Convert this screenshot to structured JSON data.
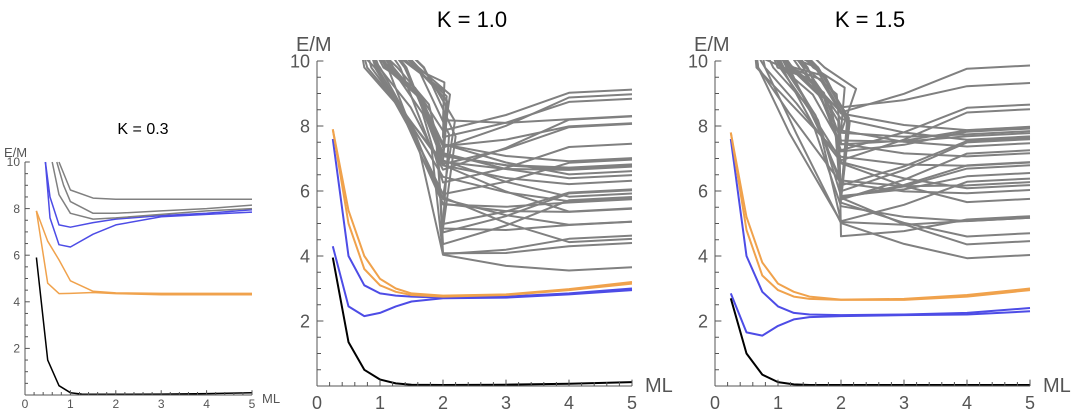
{
  "colors": {
    "gray": "#808080",
    "orange": "#f0a24c",
    "blue": "#4d4ce6",
    "black": "#000000",
    "axis": "#555555"
  },
  "chart_data": [
    {
      "type": "line",
      "title": "K = 0.3",
      "xlabel": "ML",
      "ylabel": "E/M",
      "xlim": [
        0,
        5
      ],
      "ylim": [
        0,
        10
      ],
      "xticks": [
        "0",
        "1",
        "2",
        "3",
        "4",
        "5"
      ],
      "yticks": [
        "2",
        "4",
        "6",
        "8",
        "10"
      ],
      "grid": false,
      "series": [
        {
          "color": "black",
          "x": [
            0.25,
            0.5,
            0.75,
            1,
            1.25,
            1.5,
            2,
            3,
            4,
            5
          ],
          "y": [
            5.9,
            1.5,
            0.4,
            0.1,
            0.04,
            0.03,
            0.03,
            0.04,
            0.06,
            0.1
          ]
        },
        {
          "color": "orange",
          "x": [
            0.25,
            0.5,
            0.75,
            1,
            1.5,
            2,
            3,
            4,
            5
          ],
          "y": [
            7.9,
            4.8,
            4.35,
            4.36,
            4.4,
            4.35,
            4.3,
            4.3,
            4.3
          ]
        },
        {
          "color": "orange",
          "x": [
            0.25,
            0.5,
            0.75,
            1,
            1.5,
            2,
            3,
            4,
            5
          ],
          "y": [
            7.9,
            6.6,
            5.8,
            4.9,
            4.45,
            4.38,
            4.36,
            4.36,
            4.36
          ]
        },
        {
          "color": "blue",
          "x": [
            0.45,
            0.55,
            0.75,
            1,
            1.5,
            2,
            3,
            4,
            5
          ],
          "y": [
            10,
            7.6,
            6.45,
            6.35,
            6.9,
            7.3,
            7.65,
            7.75,
            7.85
          ]
        },
        {
          "color": "blue",
          "x": [
            0.45,
            0.55,
            0.75,
            1,
            1.5,
            2,
            3,
            4,
            5
          ],
          "y": [
            10,
            8.5,
            7.3,
            7.2,
            7.4,
            7.55,
            7.7,
            7.8,
            7.95
          ]
        },
        {
          "color": "gray",
          "x": [
            0.6,
            0.75,
            1,
            1.5,
            2,
            3,
            4,
            5
          ],
          "y": [
            10,
            8.6,
            7.8,
            7.55,
            7.6,
            7.75,
            7.9,
            8.0
          ]
        },
        {
          "color": "gray",
          "x": [
            0.7,
            0.85,
            1,
            1.5,
            2,
            3,
            4,
            5
          ],
          "y": [
            10,
            9.0,
            8.3,
            7.8,
            7.8,
            7.9,
            8.0,
            8.15
          ]
        },
        {
          "color": "gray",
          "x": [
            0.75,
            1,
            1.5,
            2,
            3,
            4,
            5
          ],
          "y": [
            10,
            8.8,
            8.45,
            8.4,
            8.4,
            8.4,
            8.4
          ]
        }
      ]
    },
    {
      "type": "line",
      "title": "K = 1.0",
      "xlabel": "ML",
      "ylabel": "E/M",
      "xlim": [
        0,
        5
      ],
      "ylim": [
        0,
        10
      ],
      "xticks": [
        "0",
        "1",
        "2",
        "3",
        "4",
        "5"
      ],
      "yticks": [
        "2",
        "4",
        "6",
        "8",
        "10"
      ],
      "grid": false,
      "series": [
        {
          "color": "black",
          "x": [
            0.25,
            0.5,
            0.75,
            1,
            1.25,
            1.5,
            2,
            3,
            4,
            5
          ],
          "y": [
            3.95,
            1.35,
            0.5,
            0.2,
            0.08,
            0.04,
            0.03,
            0.04,
            0.07,
            0.12
          ]
        },
        {
          "color": "blue",
          "x": [
            0.25,
            0.5,
            0.75,
            1,
            1.25,
            1.5,
            2,
            3,
            4,
            5
          ],
          "y": [
            4.3,
            2.45,
            2.15,
            2.25,
            2.45,
            2.6,
            2.7,
            2.72,
            2.82,
            2.95
          ]
        },
        {
          "color": "blue",
          "x": [
            0.25,
            0.5,
            0.75,
            1,
            1.25,
            1.5,
            2,
            3,
            4,
            5
          ],
          "y": [
            7.6,
            4.0,
            3.1,
            2.85,
            2.78,
            2.75,
            2.72,
            2.75,
            2.85,
            3.0
          ]
        },
        {
          "color": "orange",
          "x": [
            0.25,
            0.5,
            0.75,
            1,
            1.25,
            1.5,
            2,
            3,
            4,
            5
          ],
          "y": [
            7.9,
            5.0,
            3.6,
            3.1,
            2.9,
            2.8,
            2.75,
            2.8,
            2.95,
            3.15
          ]
        },
        {
          "color": "orange",
          "x": [
            0.25,
            0.5,
            0.75,
            1,
            1.25,
            1.5,
            2,
            3,
            4,
            5
          ],
          "y": [
            7.9,
            5.4,
            4.0,
            3.3,
            3.0,
            2.85,
            2.78,
            2.82,
            2.98,
            3.2
          ]
        }
      ]
    },
    {
      "type": "line",
      "title": "K = 1.5",
      "xlabel": "ML",
      "ylabel": "E/M",
      "xlim": [
        0,
        5
      ],
      "ylim": [
        0,
        10
      ],
      "xticks": [
        "0",
        "1",
        "2",
        "3",
        "4",
        "5"
      ],
      "yticks": [
        "2",
        "4",
        "6",
        "8",
        "10"
      ],
      "grid": false,
      "series": [
        {
          "color": "black",
          "x": [
            0.25,
            0.5,
            0.75,
            1,
            1.25,
            1.5,
            2,
            3,
            4,
            5
          ],
          "y": [
            2.7,
            1.0,
            0.35,
            0.12,
            0.05,
            0.03,
            0.03,
            0.03,
            0.03,
            0.03
          ]
        },
        {
          "color": "blue",
          "x": [
            0.25,
            0.5,
            0.75,
            1,
            1.25,
            1.5,
            2,
            3,
            4,
            5
          ],
          "y": [
            2.85,
            1.65,
            1.55,
            1.85,
            2.05,
            2.12,
            2.15,
            2.18,
            2.2,
            2.3
          ]
        },
        {
          "color": "blue",
          "x": [
            0.25,
            0.5,
            0.75,
            1,
            1.25,
            1.5,
            2,
            3,
            4,
            5
          ],
          "y": [
            7.6,
            4.0,
            2.9,
            2.45,
            2.25,
            2.2,
            2.18,
            2.2,
            2.25,
            2.4
          ]
        },
        {
          "color": "orange",
          "x": [
            0.25,
            0.5,
            0.75,
            1,
            1.25,
            1.5,
            2,
            3,
            4,
            5
          ],
          "y": [
            7.8,
            4.8,
            3.4,
            2.95,
            2.75,
            2.68,
            2.65,
            2.65,
            2.75,
            2.95
          ]
        },
        {
          "color": "orange",
          "x": [
            0.25,
            0.5,
            0.75,
            1,
            1.25,
            1.5,
            2,
            3,
            4,
            5
          ],
          "y": [
            7.8,
            5.2,
            3.8,
            3.15,
            2.9,
            2.75,
            2.66,
            2.68,
            2.8,
            3.0
          ]
        }
      ]
    }
  ]
}
